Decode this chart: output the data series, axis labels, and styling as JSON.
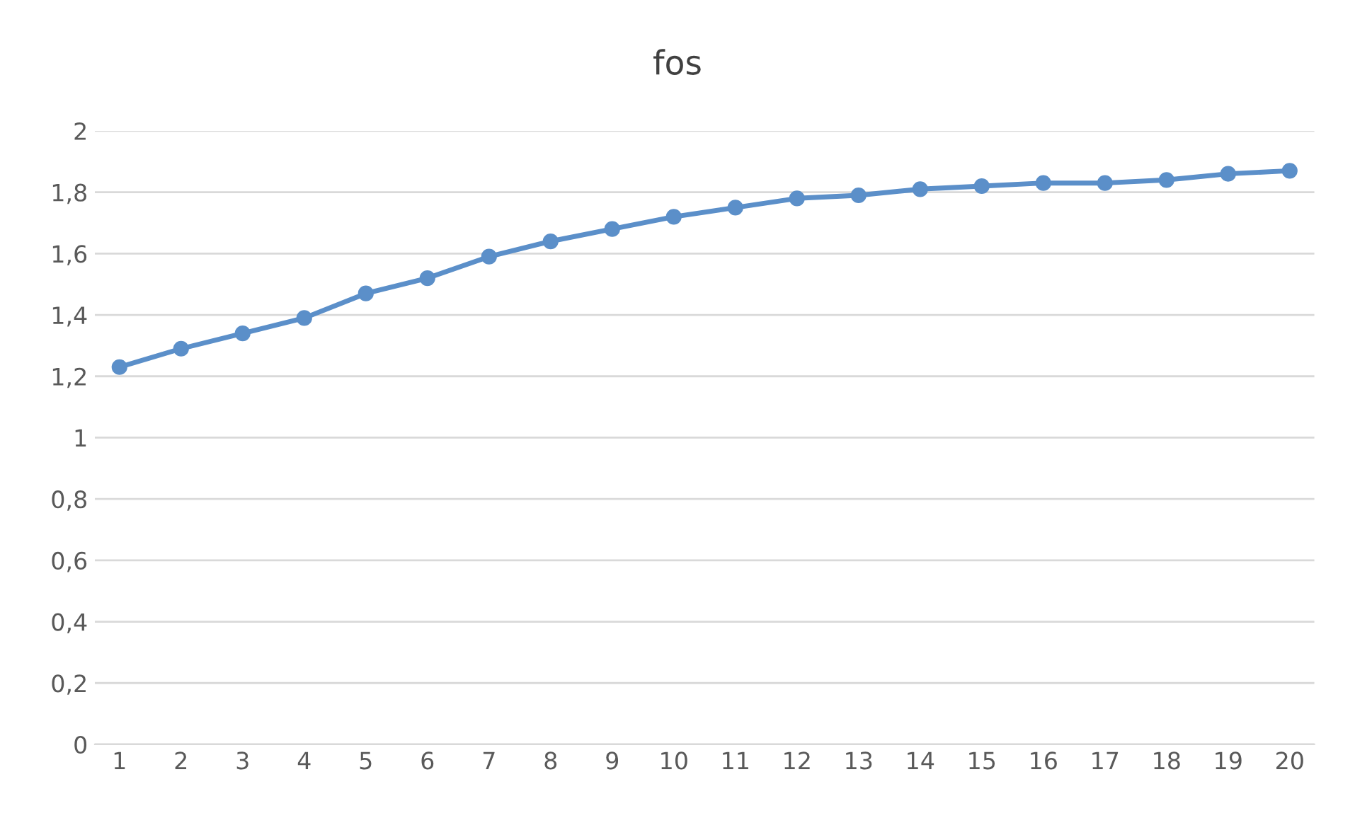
{
  "chart_data": {
    "type": "line",
    "title": "fos",
    "categories": [
      "1",
      "2",
      "3",
      "4",
      "5",
      "6",
      "7",
      "8",
      "9",
      "10",
      "11",
      "12",
      "13",
      "14",
      "15",
      "16",
      "17",
      "18",
      "19",
      "20"
    ],
    "series": [
      {
        "color": "#5b8fc9",
        "values": [
          1.23,
          1.29,
          1.34,
          1.39,
          1.47,
          1.52,
          1.59,
          1.64,
          1.68,
          1.72,
          1.75,
          1.78,
          1.79,
          1.81,
          1.82,
          1.83,
          1.83,
          1.84,
          1.86,
          1.87
        ]
      }
    ],
    "ylim": [
      0,
      2
    ],
    "yticks": [
      0,
      {
        "value": 0.2,
        "label": "0,2"
      },
      {
        "value": 0.4,
        "label": "0,4"
      },
      {
        "value": 0.6,
        "label": "0,6"
      },
      {
        "value": 0.8,
        "label": "0,8"
      },
      1,
      {
        "value": 1.2,
        "label": "1,2"
      },
      {
        "value": 1.4,
        "label": "1,4"
      },
      {
        "value": 1.6,
        "label": "1,6"
      },
      {
        "value": 1.8,
        "label": "1,8"
      },
      2
    ],
    "grid": "y",
    "marker": "circle",
    "line_style": "solid"
  }
}
